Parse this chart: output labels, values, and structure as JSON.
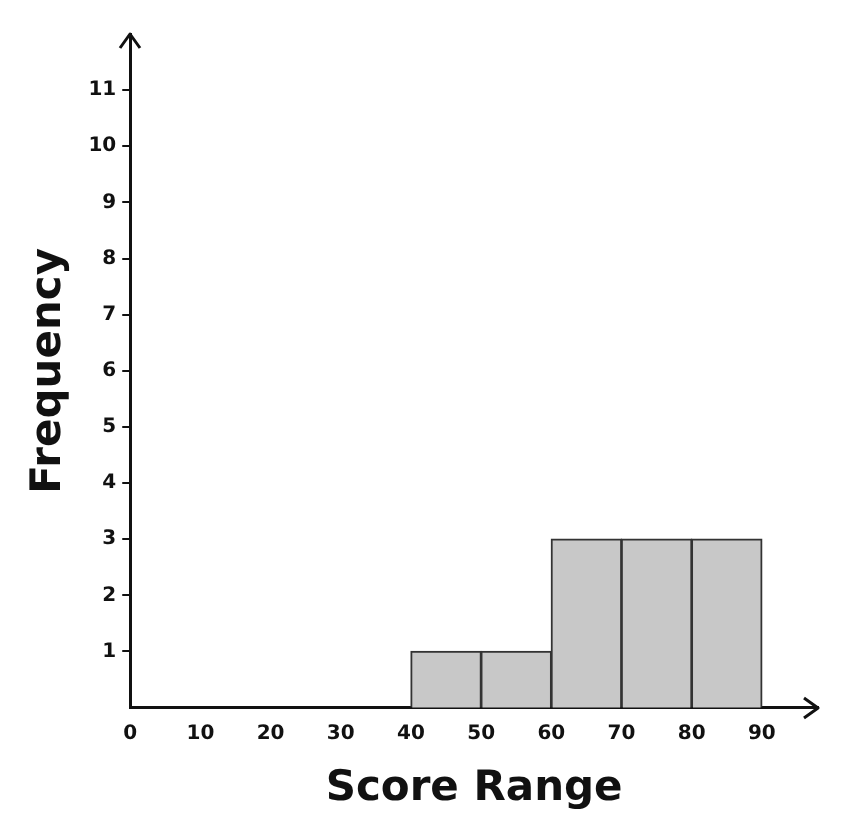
{
  "chart_data": {
    "type": "histogram",
    "xlabel": "Score Range",
    "ylabel": "Frequency",
    "bins": [
      0,
      10,
      20,
      30,
      40,
      50,
      60,
      70,
      80,
      90
    ],
    "values": [
      0,
      0,
      0,
      0,
      1,
      1,
      3,
      3,
      3
    ],
    "color": "#c8c8c8",
    "xlim": [
      0,
      98
    ],
    "xticks": [
      0,
      10,
      20,
      30,
      40,
      50,
      60,
      70,
      80,
      90
    ],
    "ylim": [
      0,
      12
    ],
    "yticks": [
      1,
      2,
      3,
      4,
      5,
      6,
      7,
      8,
      9,
      10,
      11
    ],
    "grid": false,
    "legend": false
  }
}
